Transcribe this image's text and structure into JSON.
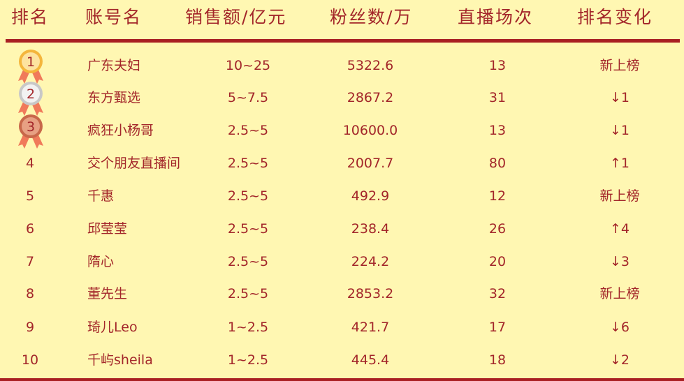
{
  "headers": [
    "排名",
    "账号名",
    "销售额/亿元",
    "粉丝数/万",
    "直播场次",
    "排名变化"
  ],
  "colors": {
    "background": "#fff7b2",
    "text": "#a3262a",
    "rule": "#a91f22",
    "gold": "#f0a830",
    "silver": "#c9c9c9",
    "bronze": "#c8684a"
  },
  "rows": [
    {
      "rank": "1",
      "medal": "gold-medal",
      "name": "广东夫妇",
      "sales": "10~25",
      "fans": "5322.6",
      "sessions": "13",
      "change": "新上榜"
    },
    {
      "rank": "2",
      "medal": "silver-medal",
      "name": "东方甄选",
      "sales": "5~7.5",
      "fans": "2867.2",
      "sessions": "31",
      "change": "↓1"
    },
    {
      "rank": "3",
      "medal": "bronze-medal",
      "name": "疯狂小杨哥",
      "sales": "2.5~5",
      "fans": "10600.0",
      "sessions": "13",
      "change": "↓1"
    },
    {
      "rank": "4",
      "name": "交个朋友直播间",
      "sales": "2.5~5",
      "fans": "2007.7",
      "sessions": "80",
      "change": "↑1"
    },
    {
      "rank": "5",
      "name": "千惠",
      "sales": "2.5~5",
      "fans": "492.9",
      "sessions": "12",
      "change": "新上榜"
    },
    {
      "rank": "6",
      "name": "邱莹莹",
      "sales": "2.5~5",
      "fans": "238.4",
      "sessions": "26",
      "change": "↑4"
    },
    {
      "rank": "7",
      "name": "隋心",
      "sales": "2.5~5",
      "fans": "224.2",
      "sessions": "20",
      "change": "↓3"
    },
    {
      "rank": "8",
      "name": "董先生",
      "sales": "2.5~5",
      "fans": "2853.2",
      "sessions": "32",
      "change": "新上榜"
    },
    {
      "rank": "9",
      "name": "琦儿Leo",
      "sales": "1~2.5",
      "fans": "421.7",
      "sessions": "17",
      "change": "↓6"
    },
    {
      "rank": "10",
      "name": "千屿sheila",
      "sales": "1~2.5",
      "fans": "445.4",
      "sessions": "18",
      "change": "↓2"
    }
  ]
}
